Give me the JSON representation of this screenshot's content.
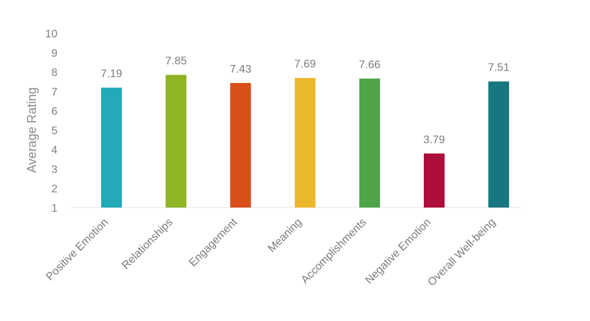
{
  "chart_data": {
    "type": "bar",
    "title": "",
    "xlabel": "",
    "ylabel": "Average Rating",
    "ylim": [
      1,
      10
    ],
    "yticks": [
      1,
      2,
      3,
      4,
      5,
      6,
      7,
      8,
      9,
      10
    ],
    "grid": false,
    "legend": "none",
    "categories": [
      "Positive Emotion",
      "Relationships",
      "Engagement",
      "Meaning",
      "Accomplishments",
      "Negative Emotion",
      "Overall Well-being"
    ],
    "values": [
      7.19,
      7.85,
      7.43,
      7.69,
      7.66,
      3.79,
      7.51
    ],
    "value_labels": [
      "7.19",
      "7.85",
      "7.43",
      "7.69",
      "7.66",
      "3.79",
      "7.51"
    ],
    "colors": [
      "#23aab8",
      "#8db524",
      "#d94f1a",
      "#ebb72c",
      "#4fa44a",
      "#ad0e3c",
      "#187680"
    ]
  }
}
